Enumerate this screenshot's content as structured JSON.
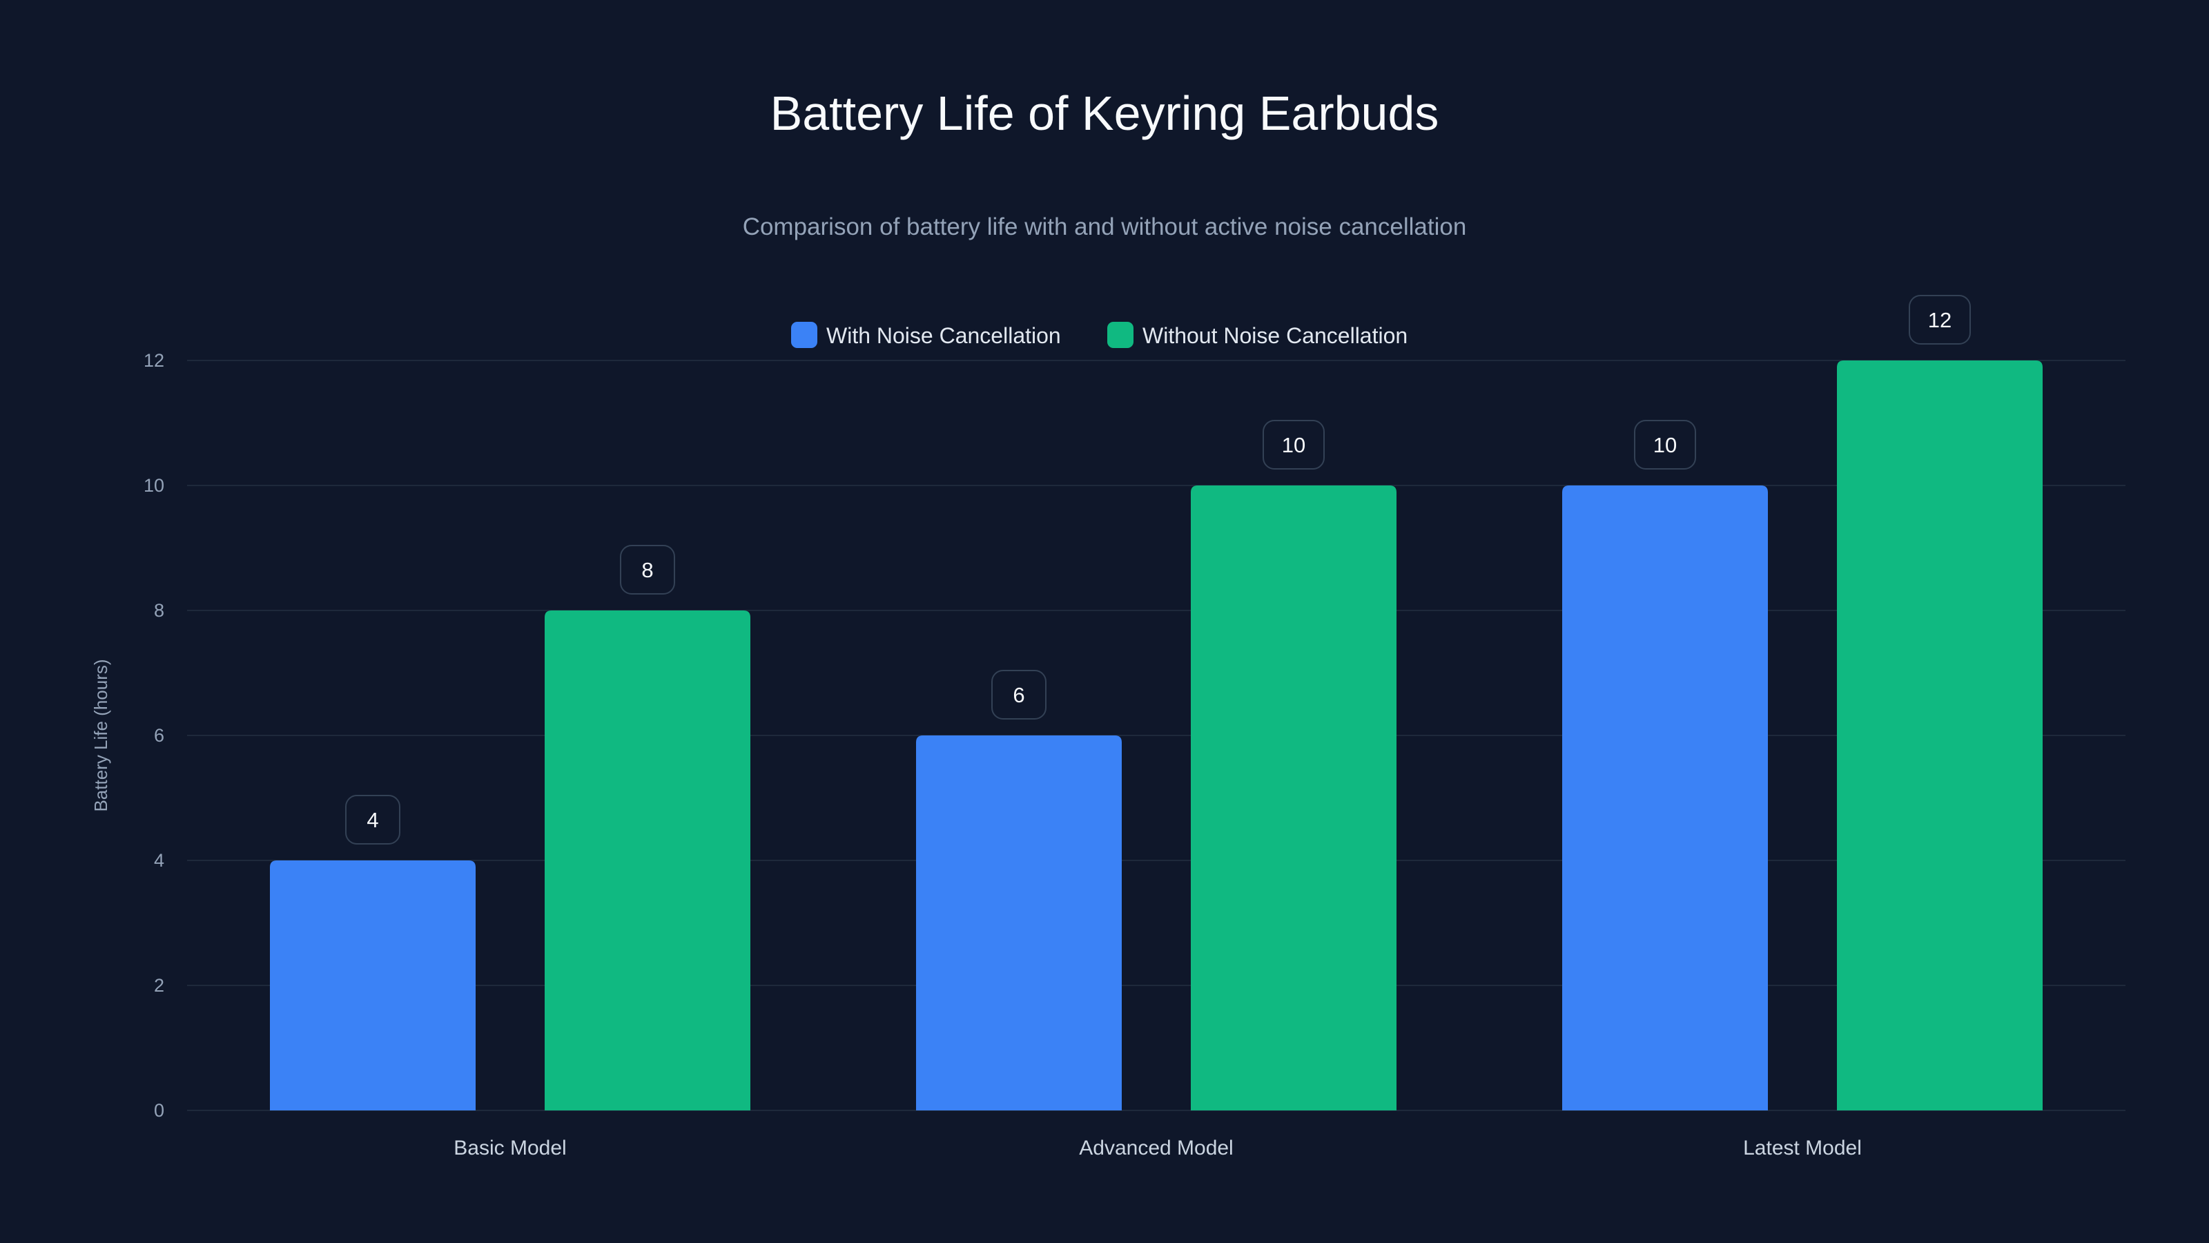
{
  "chart_data": {
    "type": "bar",
    "title": "Battery Life of Keyring Earbuds",
    "subtitle": "Comparison of battery life with and without active noise cancellation",
    "xlabel": "",
    "ylabel": "Battery Life (hours)",
    "ylim": [
      0,
      12
    ],
    "yticks": [
      0,
      2,
      4,
      6,
      8,
      10,
      12
    ],
    "grid": true,
    "legend_position": "top-center",
    "categories": [
      "Basic Model",
      "Advanced Model",
      "Latest Model"
    ],
    "series": [
      {
        "name": "With Noise Cancellation",
        "color": "#3b82f6",
        "values": [
          4,
          6,
          10
        ]
      },
      {
        "name": "Without Noise Cancellation",
        "color": "#10b981",
        "values": [
          8,
          10,
          12
        ]
      }
    ]
  }
}
